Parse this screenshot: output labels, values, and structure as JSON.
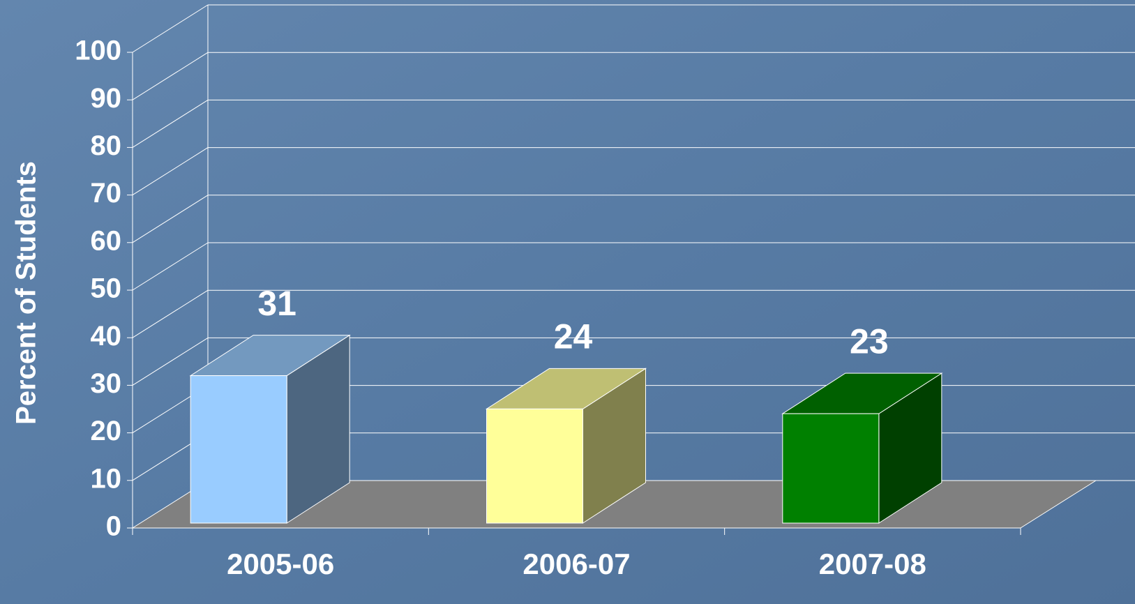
{
  "chart_data": {
    "type": "bar3d",
    "y_label": "Percent of Students",
    "categories": [
      "2005-06",
      "2006-07",
      "2007-08"
    ],
    "values": [
      31,
      24,
      23
    ],
    "colors": [
      "#99ccff",
      "#ffff99",
      "#008000"
    ],
    "ylim": [
      0,
      100
    ],
    "yticks": [
      0,
      10,
      20,
      30,
      40,
      50,
      60,
      70,
      80,
      90,
      100
    ],
    "grid": true
  }
}
